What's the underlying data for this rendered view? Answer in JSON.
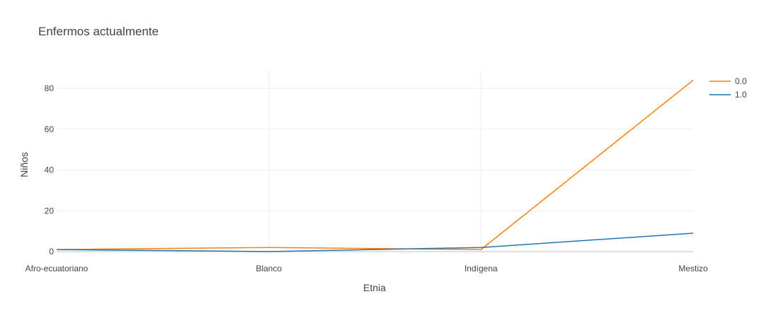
{
  "chart_data": {
    "type": "line",
    "title": "Enfermos actualmente",
    "xlabel": "Etnia",
    "ylabel": "Niños",
    "categories": [
      "Afro-ecuatoriano",
      "Blanco",
      "Indígena",
      "Mestizo"
    ],
    "ylim": [
      0,
      88
    ],
    "yticks": [
      0,
      20,
      40,
      60,
      80
    ],
    "grid": true,
    "legend_position": "top-right",
    "series": [
      {
        "name": "0.0",
        "color": "#ff7f0e",
        "values": [
          1,
          2,
          1,
          84
        ]
      },
      {
        "name": "1.0",
        "color": "#1f77b4",
        "values": [
          1,
          0,
          2,
          9
        ]
      }
    ]
  }
}
